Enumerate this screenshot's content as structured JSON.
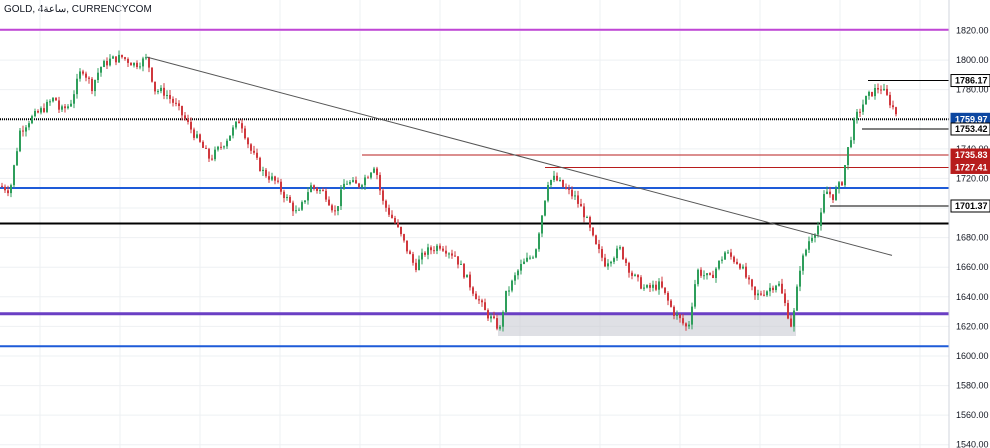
{
  "title": "GOLD, 4ساعة, CURRENCYCOM",
  "chart_data": {
    "type": "candlestick",
    "y_ticks": [
      1540,
      1560,
      1580,
      1600,
      1620,
      1640,
      1660,
      1680,
      1700,
      1720,
      1740,
      1760,
      1780,
      1800,
      1820
    ],
    "ylim": [
      1537.8,
      1840.6
    ],
    "grid": true,
    "price_badges": [
      {
        "label": "1786.17",
        "value": 1786.17,
        "style": "outline",
        "color": "#000000"
      },
      {
        "label": "1759.97",
        "value": 1759.97,
        "style": "filled",
        "color": "#0d47a1"
      },
      {
        "label": "1753.42",
        "value": 1753.42,
        "style": "outline",
        "color": "#000000"
      },
      {
        "label": "1735.83",
        "value": 1735.83,
        "style": "filled",
        "color": "#b71c1c"
      },
      {
        "label": "1727.41",
        "value": 1727.41,
        "style": "filled",
        "color": "#b71c1c"
      },
      {
        "label": "1701.37",
        "value": 1701.37,
        "style": "outline",
        "color": "#000000"
      }
    ],
    "horizontal_lines": [
      {
        "value": 1820.5,
        "color": "#c046d6",
        "width": 2
      },
      {
        "value": 1760.0,
        "color": "#000000",
        "width": 2,
        "dotted": true
      },
      {
        "value": 1713.5,
        "color": "#1e5bd8",
        "width": 2
      },
      {
        "value": 1689.5,
        "color": "#000000",
        "width": 2
      },
      {
        "value": 1628.5,
        "color": "#6a3fc4",
        "width": 3
      },
      {
        "value": 1606.6,
        "color": "#1e5bd8",
        "width": 2
      }
    ],
    "trendline": {
      "from": {
        "bar": 147,
        "price": 1802
      },
      "to": {
        "bar": 892,
        "price": 1668
      },
      "color": "#555555"
    },
    "colors": {
      "up": "#2e9e5b",
      "down": "#d0383e"
    },
    "anchors": [
      [
        0,
        1715
      ],
      [
        10,
        1712
      ],
      [
        20,
        1752
      ],
      [
        30,
        1760
      ],
      [
        45,
        1768
      ],
      [
        55,
        1775
      ],
      [
        60,
        1765
      ],
      [
        70,
        1770
      ],
      [
        82,
        1795
      ],
      [
        92,
        1782
      ],
      [
        100,
        1795
      ],
      [
        110,
        1800
      ],
      [
        122,
        1802
      ],
      [
        135,
        1797
      ],
      [
        147,
        1801
      ],
      [
        155,
        1780
      ],
      [
        165,
        1778
      ],
      [
        175,
        1770
      ],
      [
        185,
        1760
      ],
      [
        195,
        1749
      ],
      [
        210,
        1733
      ],
      [
        225,
        1745
      ],
      [
        240,
        1760
      ],
      [
        250,
        1740
      ],
      [
        262,
        1725
      ],
      [
        275,
        1718
      ],
      [
        285,
        1708
      ],
      [
        298,
        1695
      ],
      [
        310,
        1715
      ],
      [
        325,
        1710
      ],
      [
        335,
        1697
      ],
      [
        345,
        1718
      ],
      [
        358,
        1715
      ],
      [
        367,
        1722
      ],
      [
        375,
        1730
      ],
      [
        382,
        1705
      ],
      [
        395,
        1690
      ],
      [
        405,
        1675
      ],
      [
        415,
        1660
      ],
      [
        425,
        1670
      ],
      [
        440,
        1675
      ],
      [
        455,
        1668
      ],
      [
        470,
        1648
      ],
      [
        485,
        1630
      ],
      [
        500,
        1618
      ],
      [
        505,
        1640
      ],
      [
        520,
        1660
      ],
      [
        535,
        1670
      ],
      [
        548,
        1718
      ],
      [
        555,
        1720
      ],
      [
        565,
        1713
      ],
      [
        575,
        1707
      ],
      [
        585,
        1695
      ],
      [
        595,
        1675
      ],
      [
        605,
        1663
      ],
      [
        620,
        1672
      ],
      [
        632,
        1655
      ],
      [
        645,
        1645
      ],
      [
        660,
        1648
      ],
      [
        673,
        1630
      ],
      [
        688,
        1618
      ],
      [
        697,
        1658
      ],
      [
        710,
        1652
      ],
      [
        725,
        1670
      ],
      [
        740,
        1662
      ],
      [
        755,
        1640
      ],
      [
        768,
        1645
      ],
      [
        778,
        1650
      ],
      [
        785,
        1635
      ],
      [
        792,
        1619
      ],
      [
        800,
        1660
      ],
      [
        810,
        1680
      ],
      [
        820,
        1690
      ],
      [
        825,
        1712
      ],
      [
        833,
        1708
      ],
      [
        842,
        1718
      ],
      [
        848,
        1740
      ],
      [
        855,
        1760
      ],
      [
        865,
        1773
      ],
      [
        872,
        1778
      ],
      [
        880,
        1782
      ],
      [
        888,
        1774
      ],
      [
        897,
        1763
      ]
    ]
  }
}
